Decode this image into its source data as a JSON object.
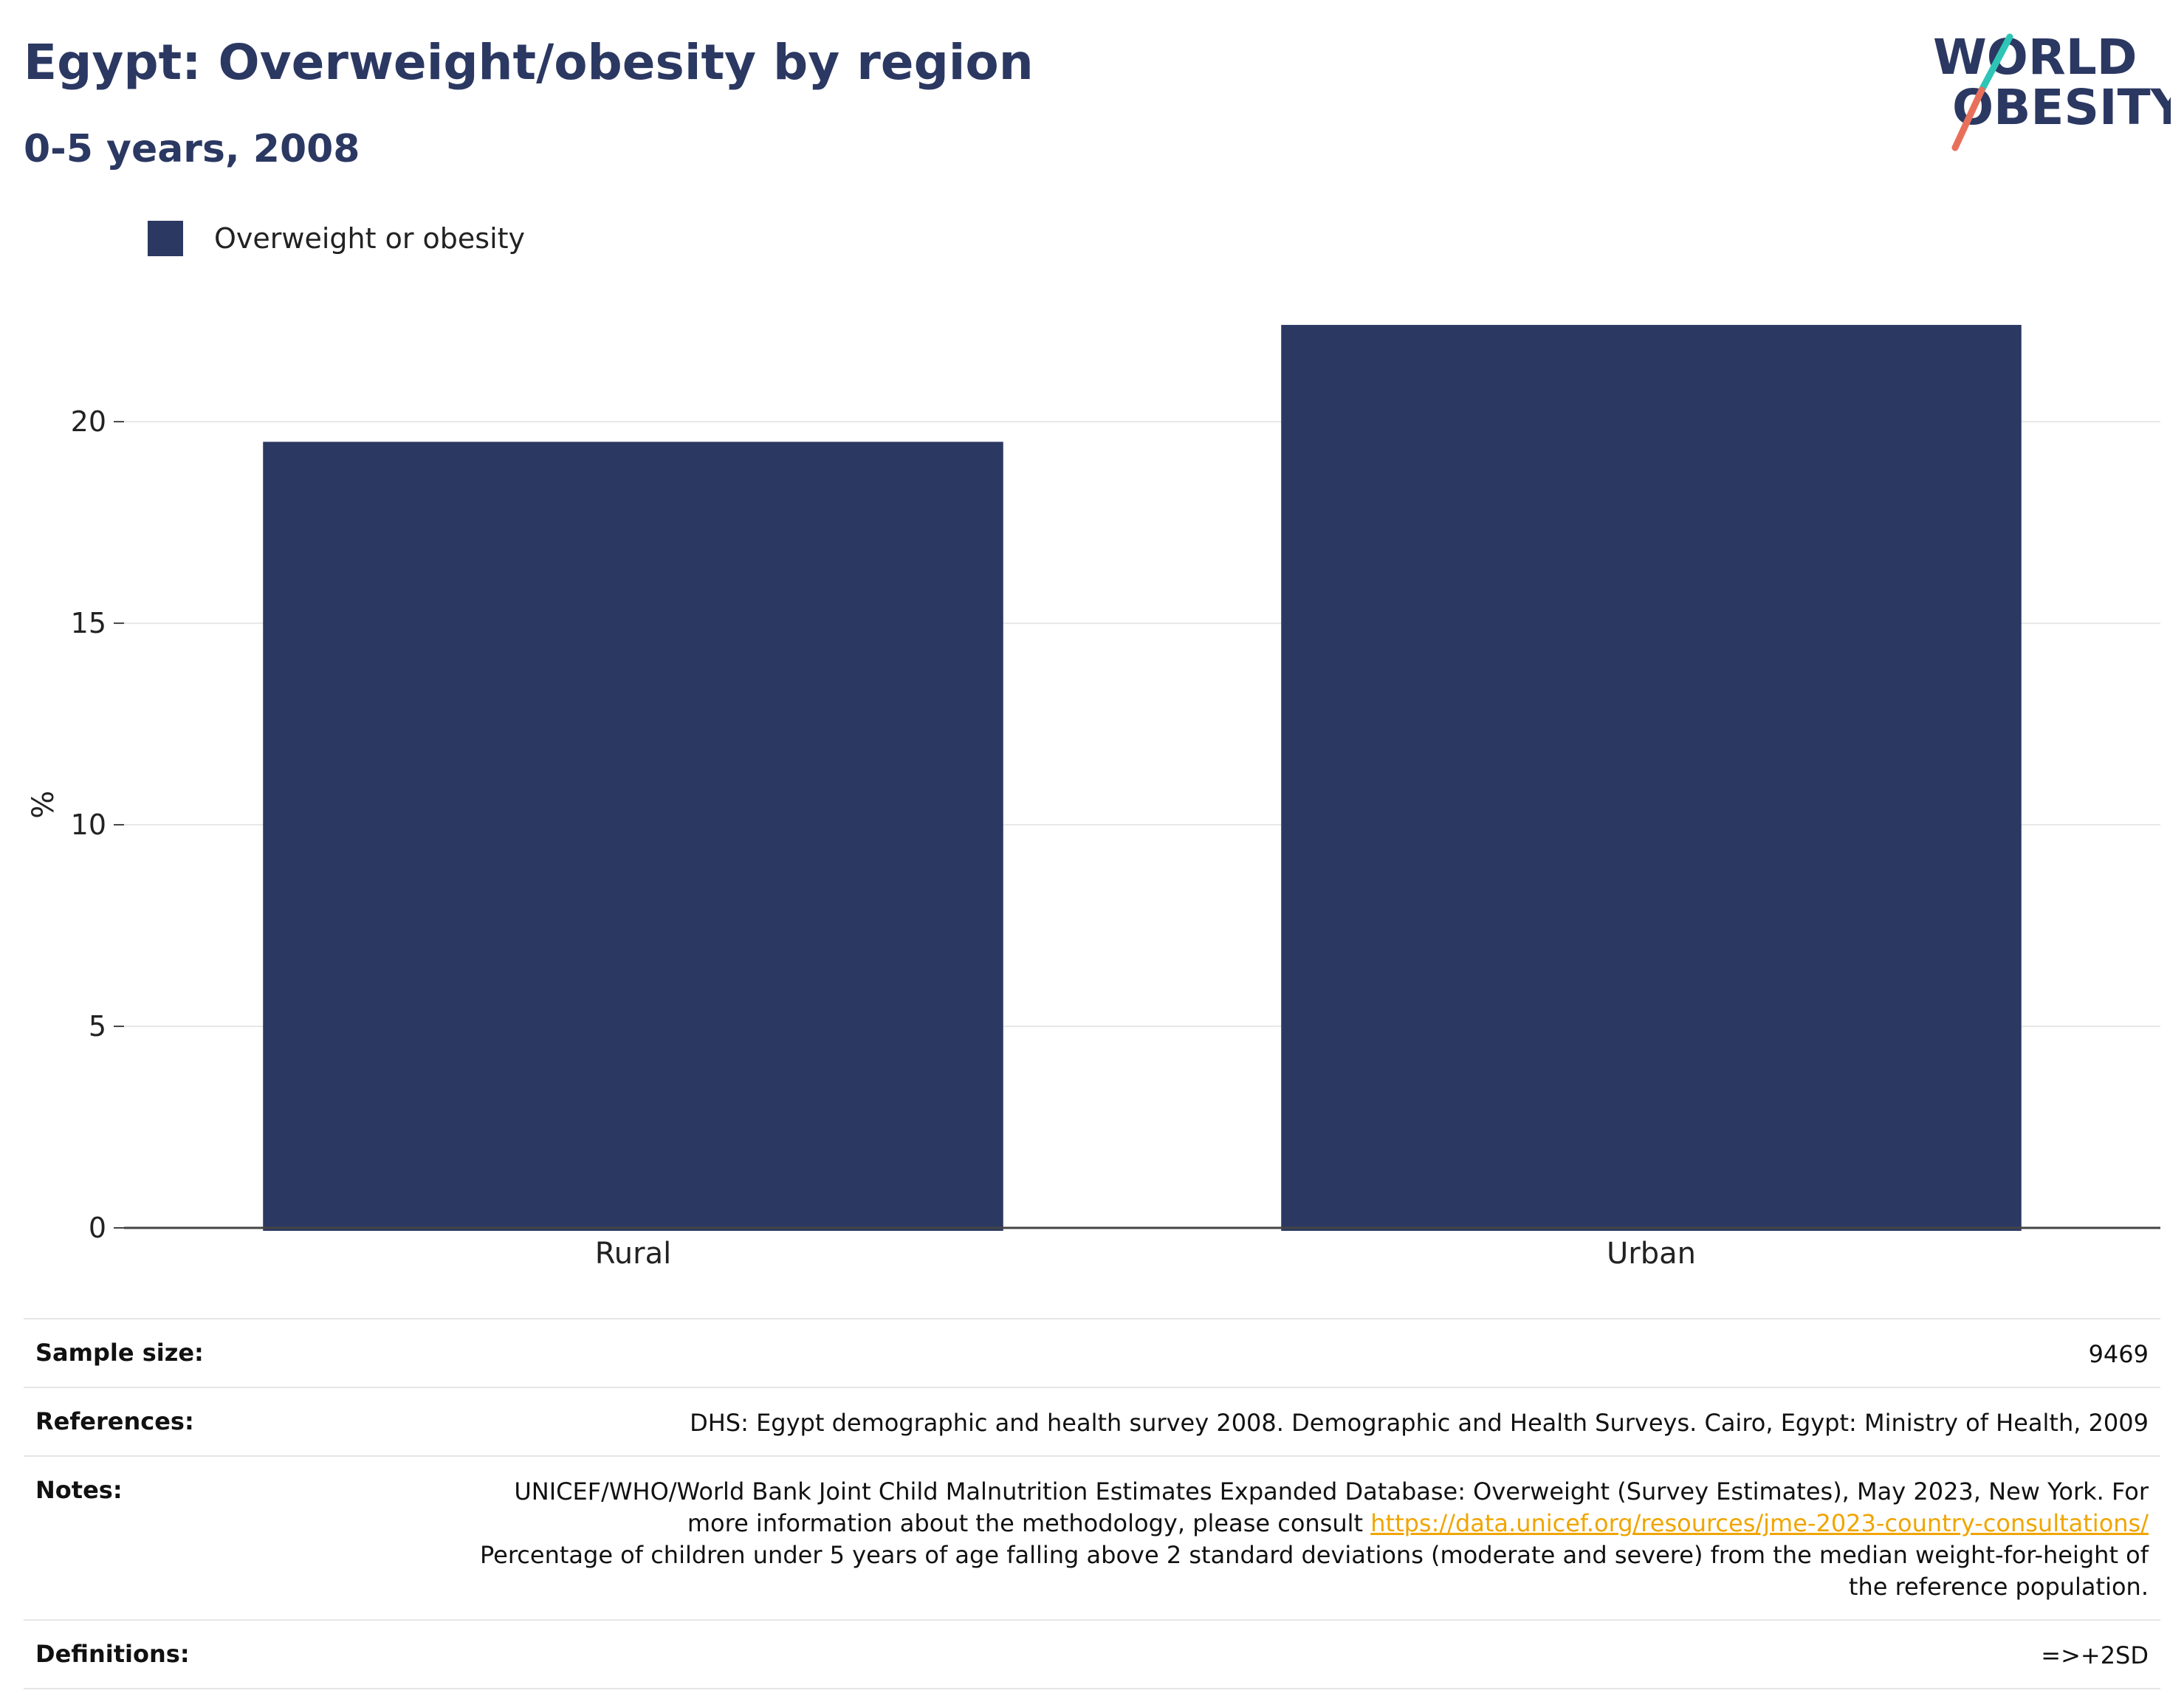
{
  "header": {
    "title": "Egypt: Overweight/obesity by region",
    "subtitle": "0-5 years, 2008"
  },
  "logo": {
    "line1": "WORLD",
    "line2": "OBESITY",
    "colors": {
      "text": "#2b3862",
      "slash_top": "#2ec4b6",
      "slash_bottom": "#e8705a"
    }
  },
  "legend": {
    "label": "Overweight or obesity",
    "color": "#2b3862"
  },
  "chart_data": {
    "type": "bar",
    "categories": [
      "Rural",
      "Urban"
    ],
    "series": [
      {
        "name": "Overweight or obesity",
        "values": [
          19.5,
          22.4
        ],
        "color": "#2b3862"
      }
    ],
    "title": "Egypt: Overweight/obesity by region",
    "subtitle": "0-5 years, 2008",
    "xlabel": "",
    "ylabel": "%",
    "ylim": [
      0,
      23.5
    ],
    "yticks": [
      0,
      5,
      10,
      15,
      20
    ],
    "grid": true,
    "legend_position": "top-left"
  },
  "meta": {
    "sample_size_label": "Sample size:",
    "sample_size_value": "9469",
    "references_label": "References:",
    "references_value": "DHS: Egypt demographic and health survey 2008. Demographic and Health Surveys. Cairo, Egypt: Ministry of Health, 2009",
    "notes_label": "Notes:",
    "notes_text_1": "UNICEF/WHO/World Bank Joint Child Malnutrition Estimates Expanded Database: Overweight (Survey Estimates), May 2023, New York. For more information about the methodology, please consult ",
    "notes_link": "https://data.unicef.org/resources/jme-2023-country-consultations/",
    "notes_text_2": "Percentage of children under 5 years of age falling above 2 standard deviations (moderate and severe) from the median weight-for-height of the reference population.",
    "definitions_label": "Definitions:",
    "definitions_value": "=>+2SD"
  }
}
